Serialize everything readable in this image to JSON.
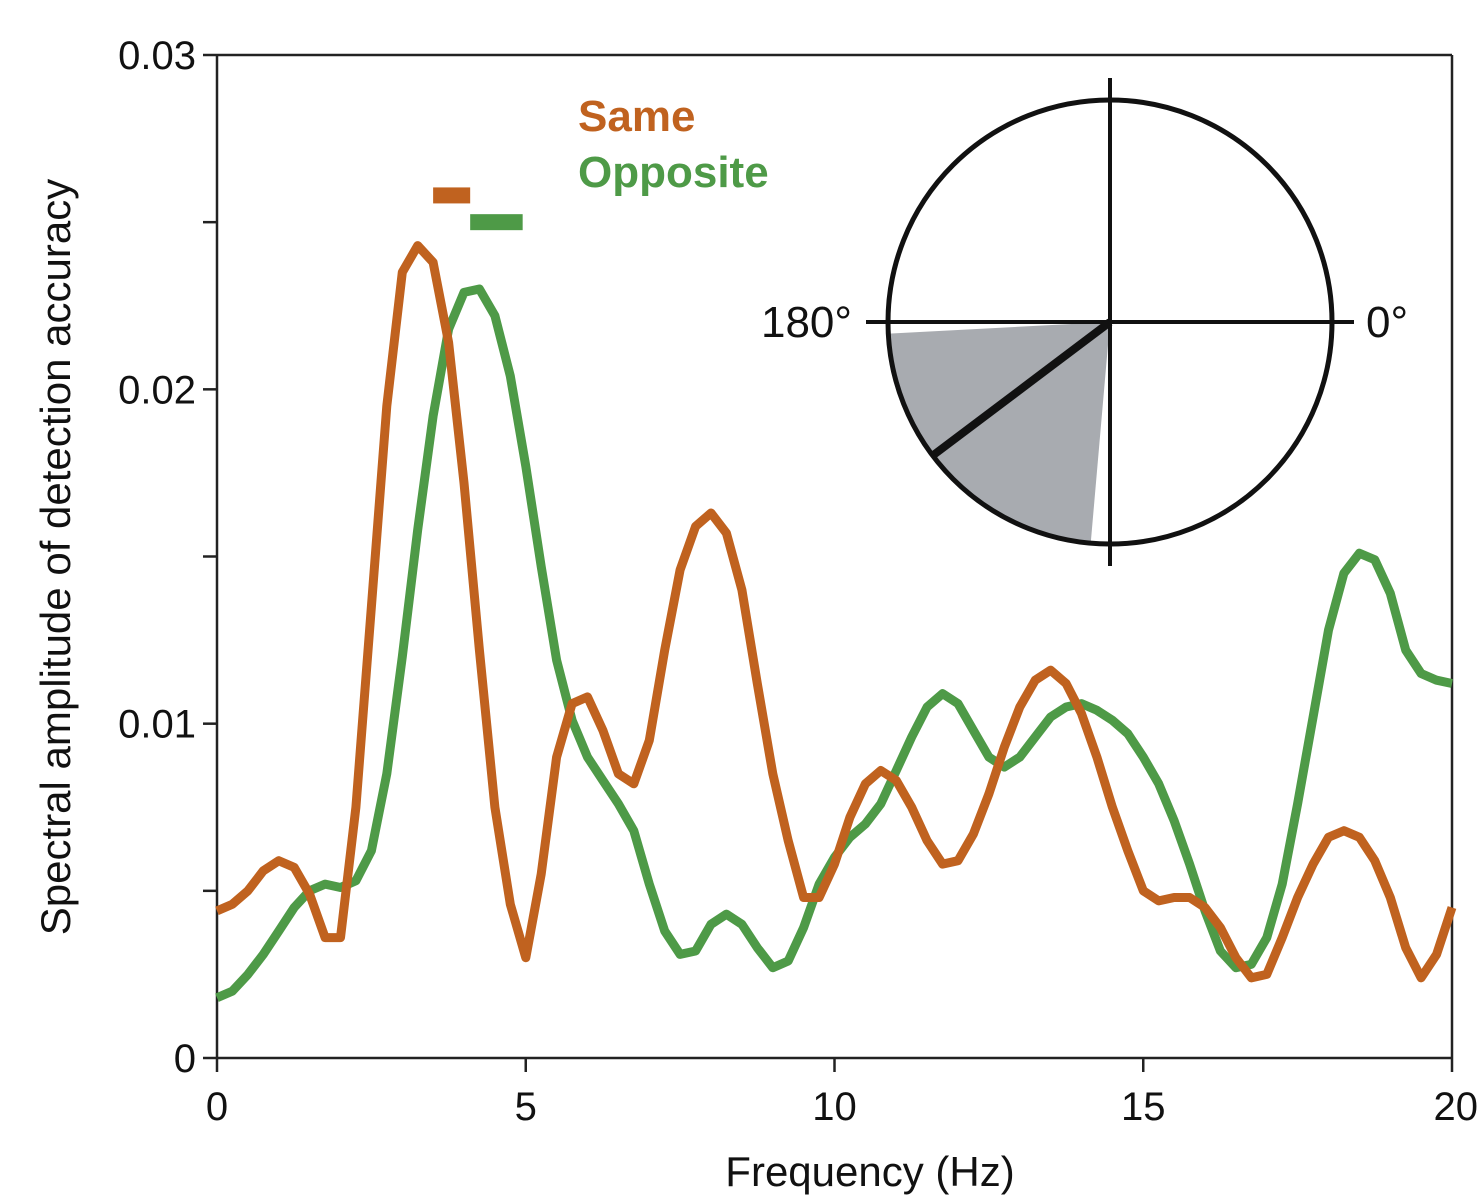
{
  "chart_data": {
    "type": "line",
    "xlabel": "Frequency (Hz)",
    "ylabel": "Spectral amplitude of detection accuracy",
    "xlim": [
      0,
      20
    ],
    "ylim": [
      0,
      0.03
    ],
    "xticks": [
      0,
      5,
      10,
      15,
      20
    ],
    "xtick_labels": [
      "0",
      "5",
      "10",
      "15",
      "20"
    ],
    "yticks": [
      0,
      0.005,
      0.01,
      0.015,
      0.02,
      0.025,
      0.03
    ],
    "ytick_labels": [
      "0",
      "",
      "0.01",
      "",
      "0.02",
      "",
      "0.03"
    ],
    "legend_position": "top-center",
    "series": [
      {
        "name": "Same",
        "color": "#c0621f",
        "x": [
          0,
          0.25,
          0.5,
          0.75,
          1.0,
          1.25,
          1.5,
          1.75,
          2.0,
          2.25,
          2.5,
          2.75,
          3.0,
          3.25,
          3.5,
          3.75,
          4.0,
          4.25,
          4.5,
          4.75,
          5.0,
          5.25,
          5.5,
          5.75,
          6.0,
          6.25,
          6.5,
          6.75,
          7.0,
          7.25,
          7.5,
          7.75,
          8.0,
          8.25,
          8.5,
          8.75,
          9.0,
          9.25,
          9.5,
          9.75,
          10.0,
          10.25,
          10.5,
          10.75,
          11.0,
          11.25,
          11.5,
          11.75,
          12.0,
          12.25,
          12.5,
          12.75,
          13.0,
          13.25,
          13.5,
          13.75,
          14.0,
          14.25,
          14.5,
          14.75,
          15.0,
          15.25,
          15.5,
          15.75,
          16.0,
          16.25,
          16.5,
          16.75,
          17.0,
          17.25,
          17.5,
          17.75,
          18.0,
          18.25,
          18.5,
          18.75,
          19.0,
          19.25,
          19.5,
          19.75,
          20.0
        ],
        "values": [
          0.0044,
          0.0046,
          0.005,
          0.0056,
          0.0059,
          0.0057,
          0.0049,
          0.0036,
          0.0036,
          0.0075,
          0.0135,
          0.0195,
          0.0235,
          0.0243,
          0.0238,
          0.0214,
          0.0172,
          0.0122,
          0.0075,
          0.0046,
          0.003,
          0.0055,
          0.009,
          0.0106,
          0.0108,
          0.0098,
          0.0085,
          0.0082,
          0.0095,
          0.0122,
          0.0146,
          0.0159,
          0.0163,
          0.0157,
          0.014,
          0.0112,
          0.0085,
          0.0065,
          0.0048,
          0.0048,
          0.0058,
          0.0072,
          0.0082,
          0.0086,
          0.0083,
          0.0075,
          0.0065,
          0.0058,
          0.0059,
          0.0067,
          0.0079,
          0.0093,
          0.0105,
          0.0113,
          0.0116,
          0.0112,
          0.0103,
          0.009,
          0.0075,
          0.0062,
          0.005,
          0.0047,
          0.0048,
          0.0048,
          0.0045,
          0.0039,
          0.003,
          0.0024,
          0.0025,
          0.0036,
          0.0048,
          0.0058,
          0.0066,
          0.0068,
          0.0066,
          0.0059,
          0.0048,
          0.0033,
          0.0024,
          0.0031,
          0.0045
        ]
      },
      {
        "name": "Opposite",
        "color": "#4e9a47",
        "x": [
          0,
          0.25,
          0.5,
          0.75,
          1.0,
          1.25,
          1.5,
          1.75,
          2.0,
          2.25,
          2.5,
          2.75,
          3.0,
          3.25,
          3.5,
          3.75,
          4.0,
          4.25,
          4.5,
          4.75,
          5.0,
          5.25,
          5.5,
          5.75,
          6.0,
          6.25,
          6.5,
          6.75,
          7.0,
          7.25,
          7.5,
          7.75,
          8.0,
          8.25,
          8.5,
          8.75,
          9.0,
          9.25,
          9.5,
          9.75,
          10.0,
          10.25,
          10.5,
          10.75,
          11.0,
          11.25,
          11.5,
          11.75,
          12.0,
          12.25,
          12.5,
          12.75,
          13.0,
          13.25,
          13.5,
          13.75,
          14.0,
          14.25,
          14.5,
          14.75,
          15.0,
          15.25,
          15.5,
          15.75,
          16.0,
          16.25,
          16.5,
          16.75,
          17.0,
          17.25,
          17.5,
          17.75,
          18.0,
          18.25,
          18.5,
          18.75,
          19.0,
          19.25,
          19.5,
          19.75,
          20.0
        ],
        "values": [
          0.0018,
          0.002,
          0.0025,
          0.0031,
          0.0038,
          0.0045,
          0.005,
          0.0052,
          0.0051,
          0.0053,
          0.0062,
          0.0085,
          0.012,
          0.0158,
          0.0192,
          0.0218,
          0.0229,
          0.023,
          0.0222,
          0.0204,
          0.0177,
          0.0147,
          0.0119,
          0.0101,
          0.009,
          0.0083,
          0.0076,
          0.0068,
          0.0052,
          0.0038,
          0.0031,
          0.0032,
          0.004,
          0.0043,
          0.004,
          0.0033,
          0.0027,
          0.0029,
          0.0039,
          0.0052,
          0.006,
          0.0066,
          0.007,
          0.0076,
          0.0086,
          0.0096,
          0.0105,
          0.0109,
          0.0106,
          0.0098,
          0.009,
          0.0087,
          0.009,
          0.0096,
          0.0102,
          0.0105,
          0.0106,
          0.0104,
          0.0101,
          0.0097,
          0.009,
          0.0082,
          0.0071,
          0.0058,
          0.0044,
          0.0032,
          0.0027,
          0.0028,
          0.0036,
          0.0052,
          0.0076,
          0.0102,
          0.0128,
          0.0145,
          0.0151,
          0.0149,
          0.0139,
          0.0122,
          0.0115,
          0.0113,
          0.0112
        ]
      }
    ],
    "significance_bars": [
      {
        "series": "Same",
        "x_start": 3.5,
        "x_end": 4.1,
        "y": 0.0258
      },
      {
        "series": "Opposite",
        "x_start": 4.1,
        "x_end": 4.95,
        "y": 0.025
      }
    ],
    "inset_polar": {
      "labels": {
        "left": "180°",
        "right": "0°"
      },
      "mean_angle_deg": 217,
      "confidence_interval_deg": [
        183,
        265
      ],
      "sector_fill": "#a8abb0"
    }
  }
}
